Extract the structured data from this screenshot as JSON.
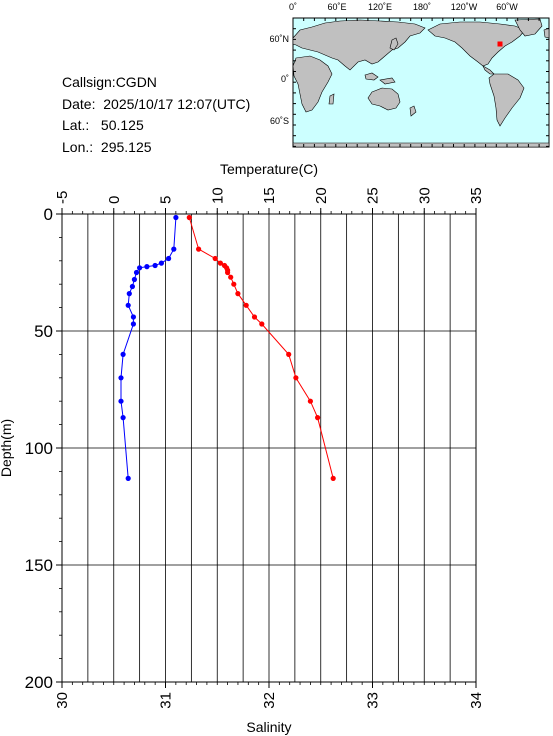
{
  "station": {
    "callsign": "Callsign:CGDN",
    "date": "Date:  2025/10/17 12:07(UTC)",
    "lat": "Lat.:   50.125",
    "lon": "Lon.:  295.125"
  },
  "map": {
    "lon_labels": [
      "0˚",
      "60˚E",
      "120˚E",
      "180˚",
      "120˚W",
      "60˚W"
    ],
    "lat_labels": [
      "60˚N",
      "0˚",
      "60˚S"
    ],
    "ocean_color": "#ccffff",
    "land_color": "#c0c0c0",
    "marker_color": "#ff0000"
  },
  "chart_data": {
    "type": "line",
    "temperature_axis": {
      "label": "Temperature(C)",
      "range": [
        -5,
        35
      ],
      "ticks": [
        "-5",
        "0",
        "5",
        "10",
        "15",
        "20",
        "25",
        "30",
        "35"
      ]
    },
    "salinity_axis": {
      "label": "Salinity",
      "range": [
        30,
        34
      ],
      "ticks": [
        "30",
        "31",
        "32",
        "33",
        "34"
      ]
    },
    "depth_axis": {
      "label": "Depth(m)",
      "range": [
        0,
        200
      ],
      "inverted": true,
      "ticks": [
        "0",
        "50",
        "100",
        "150",
        "200"
      ]
    },
    "grid": true,
    "series": [
      {
        "quantity": "temperature",
        "color": "#ff0000",
        "points": [
          {
            "x": 7.3,
            "depth": 1.5
          },
          {
            "x": 8.2,
            "depth": 15
          },
          {
            "x": 9.8,
            "depth": 19
          },
          {
            "x": 10.3,
            "depth": 21
          },
          {
            "x": 10.7,
            "depth": 22
          },
          {
            "x": 10.9,
            "depth": 23
          },
          {
            "x": 11.0,
            "depth": 24
          },
          {
            "x": 11.0,
            "depth": 25
          },
          {
            "x": 11.3,
            "depth": 27
          },
          {
            "x": 11.6,
            "depth": 30
          },
          {
            "x": 12.0,
            "depth": 34
          },
          {
            "x": 12.8,
            "depth": 39
          },
          {
            "x": 13.6,
            "depth": 44
          },
          {
            "x": 14.3,
            "depth": 47
          },
          {
            "x": 16.9,
            "depth": 60
          },
          {
            "x": 17.6,
            "depth": 70
          },
          {
            "x": 19.0,
            "depth": 80
          },
          {
            "x": 19.7,
            "depth": 87
          },
          {
            "x": 21.2,
            "depth": 113
          }
        ]
      },
      {
        "quantity": "salinity",
        "color": "#0000ff",
        "points": [
          {
            "x": 31.1,
            "depth": 1.5
          },
          {
            "x": 31.08,
            "depth": 15
          },
          {
            "x": 31.03,
            "depth": 19
          },
          {
            "x": 30.96,
            "depth": 21
          },
          {
            "x": 30.9,
            "depth": 22
          },
          {
            "x": 30.82,
            "depth": 22.5
          },
          {
            "x": 30.75,
            "depth": 23
          },
          {
            "x": 30.72,
            "depth": 25
          },
          {
            "x": 30.7,
            "depth": 28
          },
          {
            "x": 30.68,
            "depth": 31
          },
          {
            "x": 30.65,
            "depth": 34
          },
          {
            "x": 30.64,
            "depth": 39
          },
          {
            "x": 30.69,
            "depth": 44
          },
          {
            "x": 30.69,
            "depth": 47
          },
          {
            "x": 30.59,
            "depth": 60
          },
          {
            "x": 30.57,
            "depth": 70
          },
          {
            "x": 30.57,
            "depth": 80
          },
          {
            "x": 30.59,
            "depth": 87
          },
          {
            "x": 30.64,
            "depth": 113
          }
        ]
      }
    ]
  }
}
